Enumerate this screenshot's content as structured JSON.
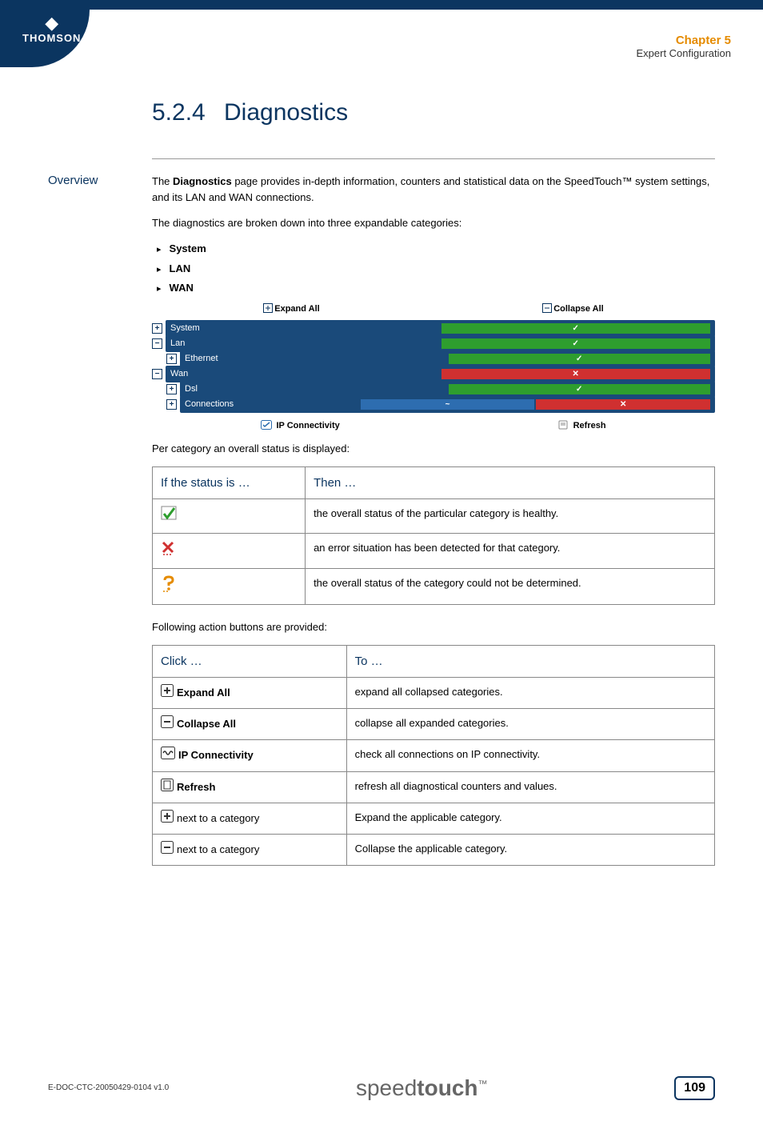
{
  "logo": {
    "symbol": "◆",
    "text": "THOMSON"
  },
  "chapter": {
    "label": "Chapter 5",
    "subtitle": "Expert Configuration"
  },
  "section": {
    "number": "5.2.4",
    "title": "Diagnostics"
  },
  "overview": {
    "label": "Overview",
    "p1a": "The ",
    "p1b": "Diagnostics",
    "p1c": " page provides in-depth information, counters and statistical data on the SpeedTouch™ system settings, and its LAN and WAN connections.",
    "p2": "The diagnostics are broken down into three expandable categories:",
    "bullets": [
      "System",
      "LAN",
      "WAN"
    ]
  },
  "diagPanel": {
    "expandAll": "Expand All",
    "collapseAll": "Collapse All",
    "rows": [
      {
        "toggle": "+",
        "indent": 0,
        "label": "System",
        "status": [
          "ok"
        ]
      },
      {
        "toggle": "−",
        "indent": 0,
        "label": "Lan",
        "status": [
          "ok"
        ]
      },
      {
        "toggle": "+",
        "indent": 1,
        "label": "Ethernet",
        "status": [
          "ok"
        ]
      },
      {
        "toggle": "−",
        "indent": 0,
        "label": "Wan",
        "status": [
          "err"
        ]
      },
      {
        "toggle": "+",
        "indent": 1,
        "label": "Dsl",
        "status": [
          "ok"
        ]
      },
      {
        "toggle": "+",
        "indent": 1,
        "label": "Connections",
        "status": [
          "link",
          "err"
        ]
      }
    ],
    "ipConn": "IP Connectivity",
    "refresh": "Refresh"
  },
  "statusIntro": "Per category an overall status is displayed:",
  "statusTable": {
    "h1": "If the status is …",
    "h2": "Then …",
    "rows": [
      {
        "icon": "check",
        "text": "the overall status of the particular category is healthy."
      },
      {
        "icon": "cross",
        "text": "an error situation has been detected for that category."
      },
      {
        "icon": "question",
        "text": "the overall status of the category could not be determined."
      }
    ]
  },
  "actionsIntro": "Following action buttons are provided:",
  "actionsTable": {
    "h1": "Click …",
    "h2": "To …",
    "rows": [
      {
        "icon": "plus",
        "label": "Expand All",
        "bold": true,
        "text": "expand all collapsed categories."
      },
      {
        "icon": "minus",
        "label": "Collapse All",
        "bold": true,
        "text": "collapse all expanded categories."
      },
      {
        "icon": "wave",
        "label": "IP Connectivity",
        "bold": true,
        "text": "check all connections on IP connectivity."
      },
      {
        "icon": "doc",
        "label": "Refresh",
        "bold": true,
        "text": "refresh all diagnostical counters and values."
      },
      {
        "icon": "plus",
        "label": "next to a category",
        "bold": false,
        "text": "Expand the applicable category."
      },
      {
        "icon": "minus",
        "label": "next to a category",
        "bold": false,
        "text": "Collapse the applicable category."
      }
    ]
  },
  "footer": {
    "doc": "E-DOC-CTC-20050429-0104 v1.0",
    "brand1": "speed",
    "brand2": "touch",
    "tm": "™",
    "page": "109"
  },
  "colors": {
    "navy": "#0b3560",
    "orange": "#e58b00",
    "green": "#2e9e2e",
    "red": "#d03030",
    "blue": "#2d6db0",
    "panelbg": "#1a4a7a"
  }
}
